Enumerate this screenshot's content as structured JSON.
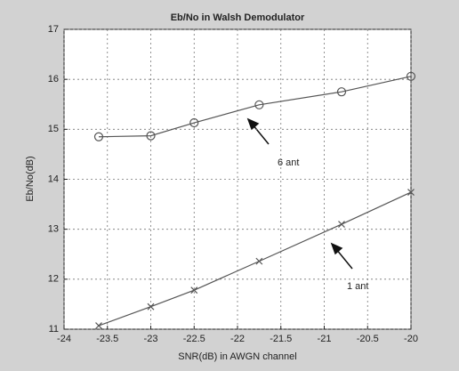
{
  "chart_data": {
    "type": "line",
    "title": "Eb/No in Walsh Demodulator",
    "xlabel": "SNR(dB) in AWGN channel",
    "ylabel": "Eb/No(dB)",
    "x": [
      -23.6,
      -23,
      -22.5,
      -21.75,
      -20.8,
      -20
    ],
    "series": [
      {
        "name": "6 ant",
        "color": "#555555",
        "marker": "circle",
        "values": [
          14.85,
          14.87,
          15.13,
          15.49,
          15.75,
          16.06
        ]
      },
      {
        "name": "1 ant",
        "color": "#555555",
        "marker": "x",
        "values": [
          11.07,
          11.45,
          11.78,
          12.36,
          13.1,
          13.74
        ]
      }
    ],
    "annotations": [
      "6 ant",
      "1 ant"
    ],
    "xlim": [
      -24,
      -20
    ],
    "xticks": [
      -24,
      -23.5,
      -23,
      -22.5,
      -22,
      -21.5,
      -21,
      -20.5,
      -20
    ],
    "ylim": [
      11,
      17
    ],
    "yticks": [
      11,
      12,
      13,
      14,
      15,
      16,
      17
    ],
    "grid": true
  }
}
